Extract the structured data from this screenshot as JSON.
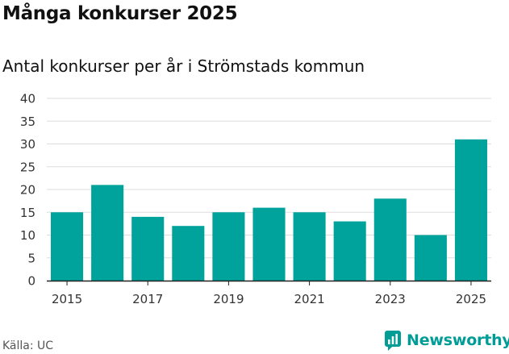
{
  "title": "Många konkurser 2025",
  "subtitle": "Antal konkurser per år i Strömstads kommun",
  "source": "Källa: UC",
  "brand": {
    "name": "Newsworthy",
    "icon": "newsworthy-logo-icon",
    "color": "#009c96"
  },
  "colors": {
    "bar": "#00a39b",
    "grid": "#dddddd",
    "axis": "#222222"
  },
  "chart_data": {
    "type": "bar",
    "categories": [
      "2015",
      "2016",
      "2017",
      "2018",
      "2019",
      "2020",
      "2021",
      "2022",
      "2023",
      "2024",
      "2025"
    ],
    "values": [
      15,
      21,
      14,
      12,
      15,
      16,
      15,
      13,
      18,
      10,
      31
    ],
    "x_tick_labels": [
      "2015",
      "2017",
      "2019",
      "2021",
      "2023",
      "2025"
    ],
    "y_ticks": [
      0,
      5,
      10,
      15,
      20,
      25,
      30,
      35,
      40
    ],
    "ylim": [
      0,
      40
    ],
    "grid": true,
    "legend": "none"
  }
}
